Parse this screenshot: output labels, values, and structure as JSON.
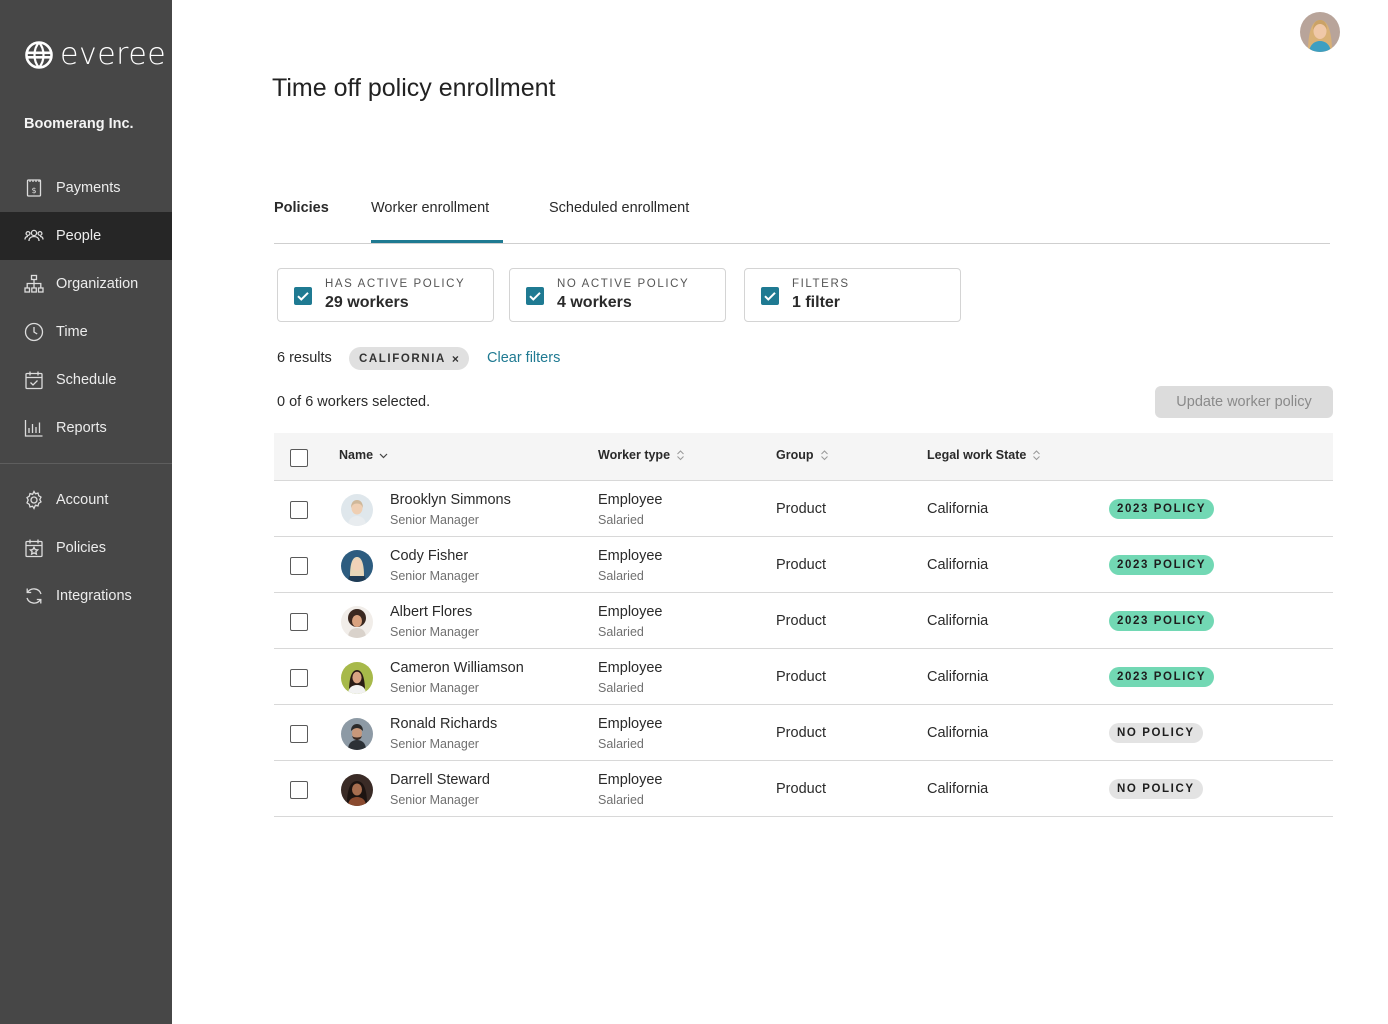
{
  "brand": {
    "name": "everee",
    "company": "Boomerang Inc."
  },
  "sidebar": {
    "items": [
      {
        "label": "Payments",
        "icon": "payments-icon",
        "active": false
      },
      {
        "label": "People",
        "icon": "people-icon",
        "active": true
      },
      {
        "label": "Organization",
        "icon": "organization-icon",
        "active": false
      },
      {
        "label": "Time",
        "icon": "clock-icon",
        "active": false
      },
      {
        "label": "Schedule",
        "icon": "calendar-check-icon",
        "active": false
      },
      {
        "label": "Reports",
        "icon": "bar-chart-icon",
        "active": false
      },
      {
        "label": "Account",
        "icon": "gear-icon",
        "active": false
      },
      {
        "label": "Policies",
        "icon": "calendar-star-icon",
        "active": false
      },
      {
        "label": "Integrations",
        "icon": "sync-icon",
        "active": false
      }
    ]
  },
  "page": {
    "title": "Time off policy enrollment"
  },
  "tabs": [
    {
      "label": "Policies"
    },
    {
      "label": "Worker enrollment",
      "selected": true
    },
    {
      "label": "Scheduled enrollment"
    }
  ],
  "filters": [
    {
      "label": "HAS ACTIVE POLICY",
      "value": "29 workers",
      "checked": true
    },
    {
      "label": "NO ACTIVE POLICY",
      "value": "4 workers",
      "checked": true
    },
    {
      "label": "FILTERS",
      "value": "1 filter",
      "checked": true
    }
  ],
  "results": {
    "count_text": "6 results",
    "chip": "CALIFORNIA",
    "chip_remove": "×",
    "clear_label": "Clear filters",
    "selected_text": "0 of 6 workers selected.",
    "update_label": "Update worker policy"
  },
  "table": {
    "headers": {
      "name": "Name",
      "worker_type": "Worker type",
      "group": "Group",
      "state": "Legal work State"
    },
    "rows": [
      {
        "name": "Brooklyn Simmons",
        "title": "Senior Manager",
        "type": "Employee",
        "pay": "Salaried",
        "group": "Product",
        "state": "California",
        "policy": "2023 POLICY",
        "policy_active": true
      },
      {
        "name": "Cody Fisher",
        "title": "Senior Manager",
        "type": "Employee",
        "pay": "Salaried",
        "group": "Product",
        "state": "California",
        "policy": "2023 POLICY",
        "policy_active": true
      },
      {
        "name": "Albert Flores",
        "title": "Senior Manager",
        "type": "Employee",
        "pay": "Salaried",
        "group": "Product",
        "state": "California",
        "policy": "2023 POLICY",
        "policy_active": true
      },
      {
        "name": "Cameron Williamson",
        "title": "Senior Manager",
        "type": "Employee",
        "pay": "Salaried",
        "group": "Product",
        "state": "California",
        "policy": "2023 POLICY",
        "policy_active": true
      },
      {
        "name": "Ronald Richards",
        "title": "Senior Manager",
        "type": "Employee",
        "pay": "Salaried",
        "group": "Product",
        "state": "California",
        "policy": "NO POLICY",
        "policy_active": false
      },
      {
        "name": "Darrell Steward",
        "title": "Senior Manager",
        "type": "Employee",
        "pay": "Salaried",
        "group": "Product",
        "state": "California",
        "policy": "NO POLICY",
        "policy_active": false
      }
    ]
  },
  "colors": {
    "accent": "#1f7a92",
    "sidebar": "#474747",
    "sidebar_active": "#262626",
    "badge_active": "#72d8b4",
    "badge_none": "#e3e3e3"
  }
}
